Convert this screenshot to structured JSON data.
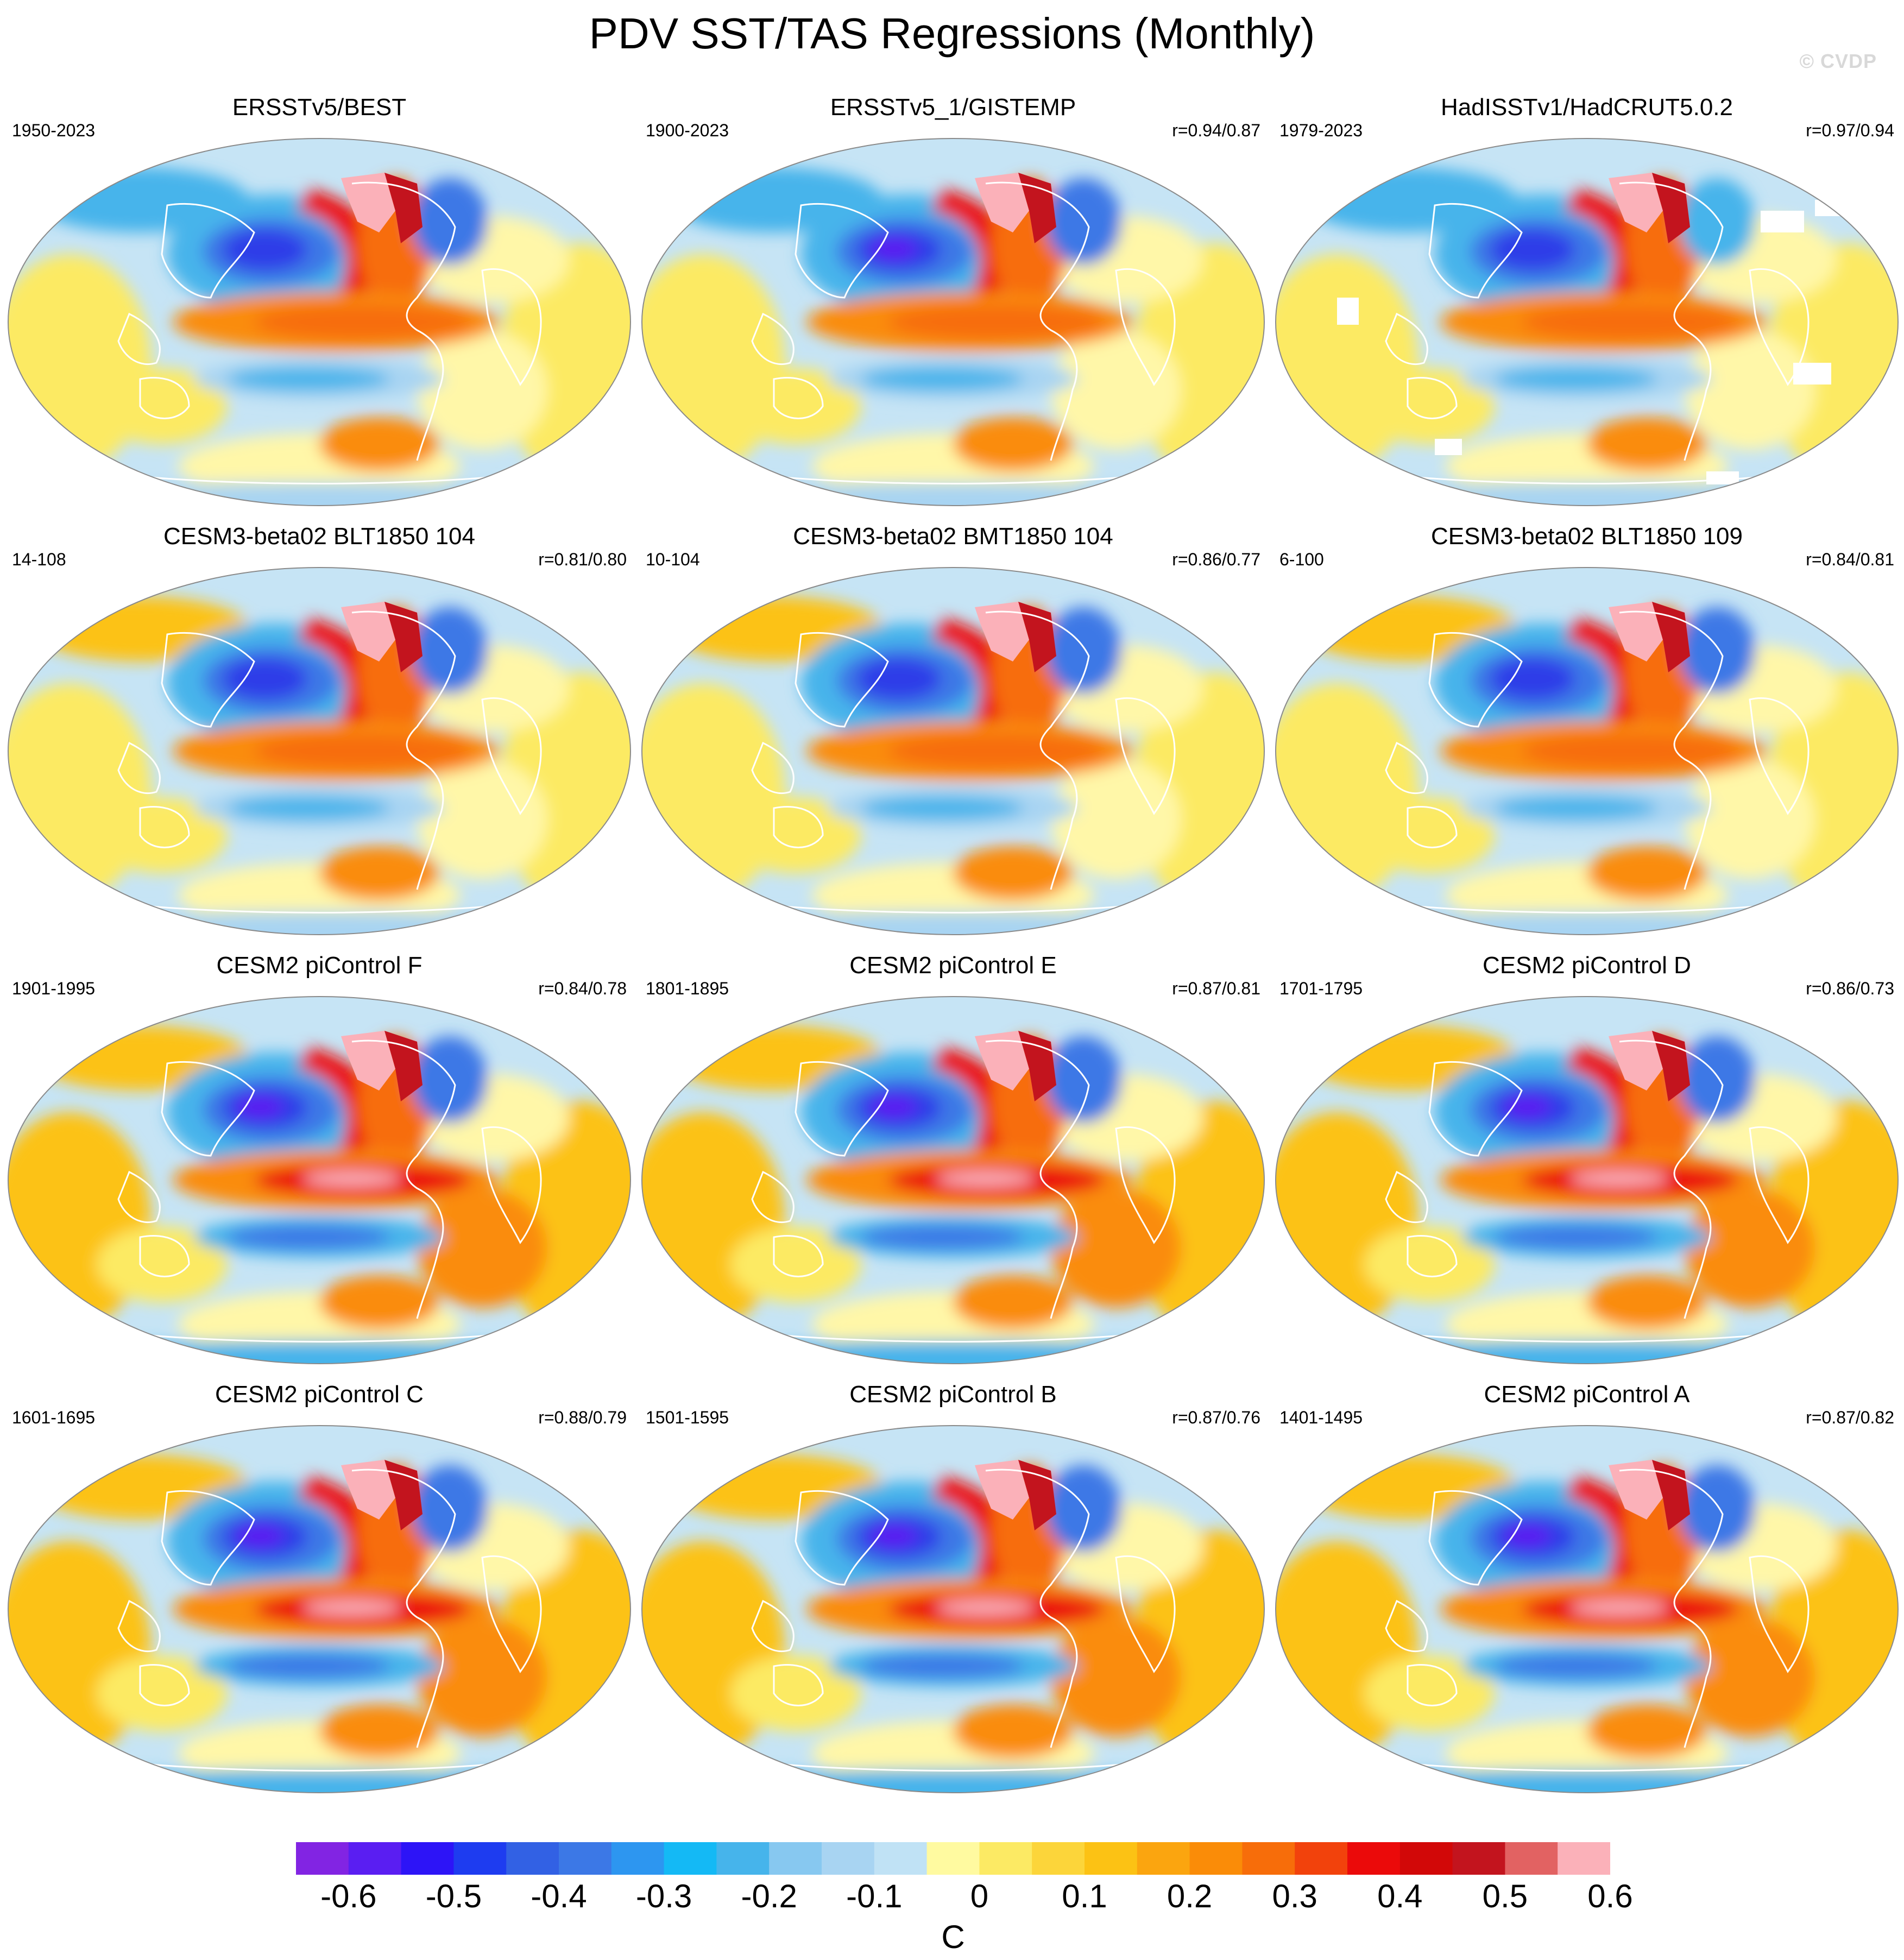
{
  "title": "PDV SST/TAS Regressions (Monthly)",
  "watermark": "© CVDP",
  "colors": {
    "land_outline": "#ffffff",
    "map_border": "#8a8a8a",
    "missing_data": "#ffffff"
  },
  "panels": [
    {
      "title": "ERSSTv5/BEST",
      "period": "1950-2023",
      "corr": "",
      "style": "obs"
    },
    {
      "title": "ERSSTv5_1/GISTEMP",
      "period": "1900-2023",
      "corr": "r=0.94/0.87",
      "style": "obs"
    },
    {
      "title": "HadISSTv1/HadCRUT5.0.2",
      "period": "1979-2023",
      "corr": "r=0.97/0.94",
      "style": "obs-gaps"
    },
    {
      "title": "CESM3-beta02 BLT1850 104",
      "period": "14-108",
      "corr": "r=0.81/0.80",
      "style": "model"
    },
    {
      "title": "CESM3-beta02 BMT1850 104",
      "period": "10-104",
      "corr": "r=0.86/0.77",
      "style": "model"
    },
    {
      "title": "CESM3-beta02 BLT1850 109",
      "period": "6-100",
      "corr": "r=0.84/0.81",
      "style": "model"
    },
    {
      "title": "CESM2 piControl F",
      "period": "1901-1995",
      "corr": "r=0.84/0.78",
      "style": "strong"
    },
    {
      "title": "CESM2 piControl E",
      "period": "1801-1895",
      "corr": "r=0.87/0.81",
      "style": "strong"
    },
    {
      "title": "CESM2 piControl D",
      "period": "1701-1795",
      "corr": "r=0.86/0.73",
      "style": "strong"
    },
    {
      "title": "CESM2 piControl C",
      "period": "1601-1695",
      "corr": "r=0.88/0.79",
      "style": "strong"
    },
    {
      "title": "CESM2 piControl B",
      "period": "1501-1595",
      "corr": "r=0.87/0.76",
      "style": "strong"
    },
    {
      "title": "CESM2 piControl A",
      "period": "1401-1495",
      "corr": "r=0.87/0.82",
      "style": "strong"
    }
  ],
  "colorbar": {
    "unit": "C",
    "colors": [
      "#8224e3",
      "#5a1ef2",
      "#2d14f7",
      "#1e3cf0",
      "#3261e4",
      "#3c78e6",
      "#2d96f0",
      "#14b9f5",
      "#46b4eb",
      "#87c8f0",
      "#a8d4f2",
      "#c0e2f5",
      "#fffaa0",
      "#fcea64",
      "#fcd53a",
      "#fcc214",
      "#fba50f",
      "#fa8c08",
      "#f76d0a",
      "#f2420c",
      "#eb0a0a",
      "#d20808",
      "#c3141e",
      "#e26262",
      "#fbb1b9"
    ],
    "labels": [
      "-0.6",
      "-0.5",
      "-0.4",
      "-0.3",
      "-0.2",
      "-0.1",
      "0",
      "0.1",
      "0.2",
      "0.3",
      "0.4",
      "0.5",
      "0.6"
    ]
  }
}
